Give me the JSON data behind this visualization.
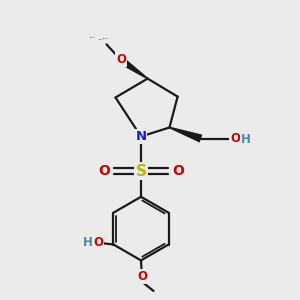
{
  "bg_color": "#ebebeb",
  "bond_color": "#1a1a1a",
  "N_color": "#1a1acc",
  "O_color": "#cc0000",
  "S_color": "#b8b800",
  "OH_color": "#4a8a9a",
  "figsize": [
    3.0,
    3.0
  ],
  "dpi": 100,
  "xlim": [
    0,
    10
  ],
  "ylim": [
    0,
    10
  ]
}
